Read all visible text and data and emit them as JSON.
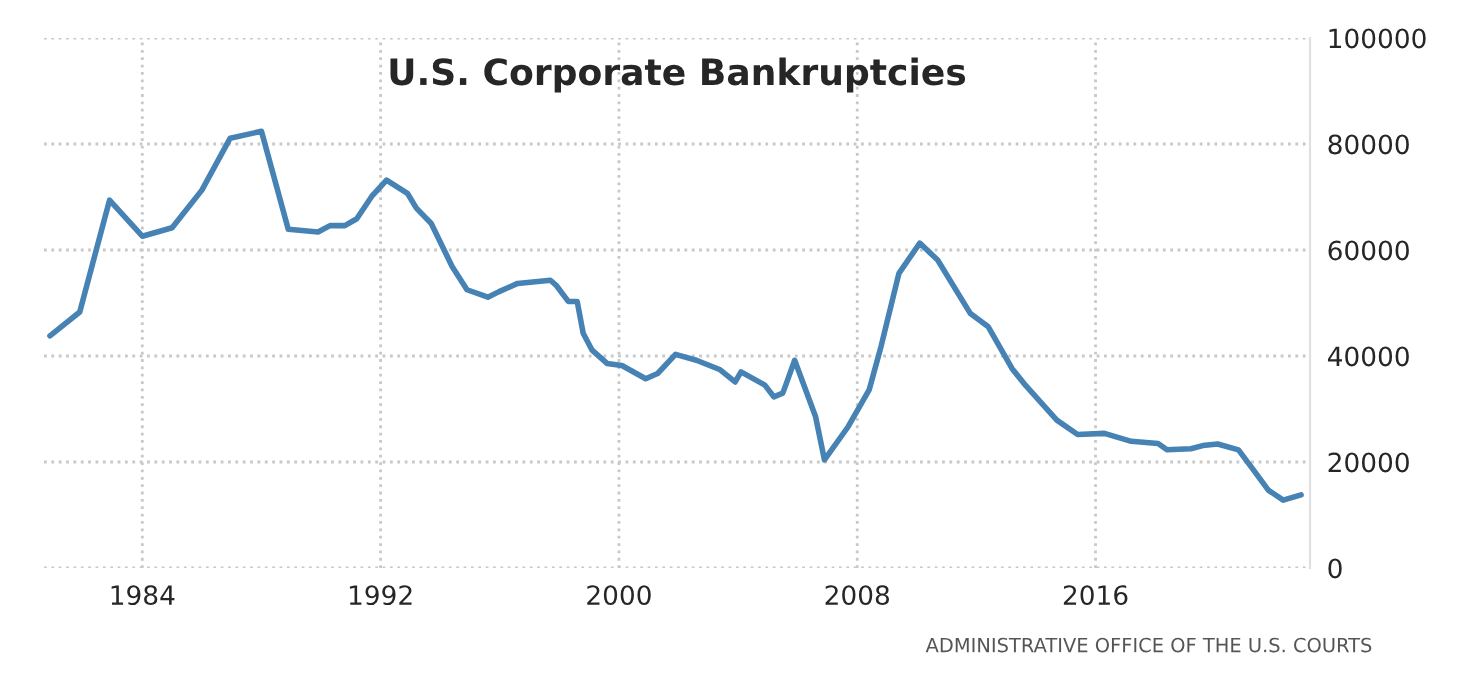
{
  "chart_data": {
    "type": "line",
    "title": "U.S. Corporate Bankruptcies",
    "x": [
      1980.9,
      1981.9,
      1982.9,
      1984.0,
      1985.0,
      1986.0,
      1986.95,
      1988.0,
      1988.9,
      1989.9,
      1990.3,
      1990.8,
      1991.2,
      1991.7,
      1992.2,
      1992.9,
      1993.2,
      1993.7,
      1994.4,
      1994.9,
      1995.6,
      1995.96,
      1996.6,
      1997.7,
      1997.9,
      1998.3,
      1998.6,
      1998.8,
      1999.1,
      1999.6,
      2000.1,
      2000.9,
      2001.3,
      2001.9,
      2002.6,
      2003.4,
      2003.9,
      2004.1,
      2004.9,
      2005.2,
      2005.5,
      2005.6,
      2005.9,
      2006.6,
      2006.9,
      2007.7,
      2008.4,
      2008.8,
      2009.4,
      2010.1,
      2010.7,
      2011.8,
      2012.4,
      2013.2,
      2013.6,
      2014.7,
      2015.4,
      2016.3,
      2017.2,
      2018.1,
      2018.4,
      2019.2,
      2019.6,
      2020.1,
      2020.8,
      2021.3,
      2021.8,
      2022.3,
      2022.9
    ],
    "series": [
      {
        "color": "#4682b4",
        "values": [
          43800,
          48300,
          69400,
          62600,
          64200,
          71300,
          81100,
          82400,
          63900,
          63400,
          64600,
          64600,
          65900,
          70100,
          73200,
          70700,
          67900,
          65000,
          56900,
          52500,
          51100,
          52100,
          53700,
          54300,
          53300,
          50300,
          50300,
          44300,
          41100,
          38600,
          38200,
          35700,
          36700,
          40300,
          39200,
          37400,
          35100,
          37000,
          34500,
          32300,
          33000,
          34500,
          39200,
          28600,
          20400,
          26700,
          33600,
          41800,
          55600,
          61300,
          58100,
          48000,
          45500,
          37600,
          34800,
          27900,
          25200,
          25400,
          23900,
          23500,
          22300,
          22500,
          23100,
          23400,
          22300,
          18500,
          14700,
          12800,
          13800
        ]
      }
    ],
    "xlim": [
      1980.7,
      2023.2
    ],
    "xticks": [
      {
        "value": 1984,
        "label": "1984"
      },
      {
        "value": 1992,
        "label": "1992"
      },
      {
        "value": 2000,
        "label": "2000"
      },
      {
        "value": 2008,
        "label": "2008"
      },
      {
        "value": 2016,
        "label": "2016"
      }
    ],
    "ylim": [
      0,
      100000
    ],
    "yticks": [
      0,
      20000,
      40000,
      60000,
      80000,
      100000
    ],
    "grid": true,
    "legend": false,
    "marker": "none",
    "line_style": "solid",
    "annotations": [
      "ADMINISTRATIVE OFFICE OF THE U.S. COURTS"
    ]
  }
}
